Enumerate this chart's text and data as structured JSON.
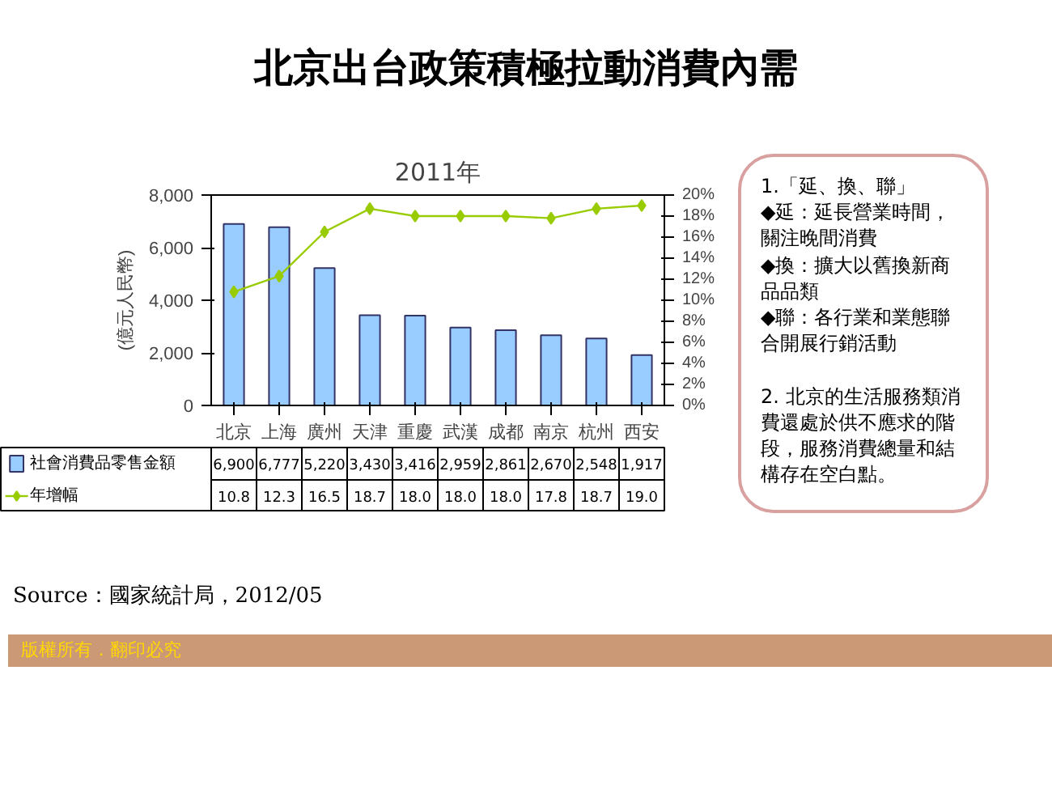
{
  "chart_data": {
    "type": "bar",
    "title": "北京出台政策積極拉動消費內需",
    "subtitle": "2011年",
    "ylabel": "(億元人民幣)",
    "categories": [
      "北京",
      "上海",
      "廣州",
      "天津",
      "重慶",
      "武漢",
      "成都",
      "南京",
      "杭州",
      "西安"
    ],
    "series": [
      {
        "name": "社會消費品零售金額",
        "color": "#99ccff",
        "values": [
          6900,
          6777,
          5220,
          3430,
          3416,
          2959,
          2861,
          2670,
          2548,
          1917
        ],
        "value_labels": [
          "6,900",
          "6,777",
          "5,220",
          "3,430",
          "3,416",
          "2,959",
          "2,861",
          "2,670",
          "2,548",
          "1,917"
        ]
      },
      {
        "name": "年增幅",
        "type": "line",
        "axis": "y2",
        "color": "#99cc00",
        "values": [
          10.8,
          12.3,
          16.5,
          18.7,
          18.0,
          18.0,
          18.0,
          17.8,
          18.7,
          19.0
        ],
        "value_labels": [
          "10.8",
          "12.3",
          "16.5",
          "18.7",
          "18.0",
          "18.0",
          "18.0",
          "17.8",
          "18.7",
          "19.0"
        ]
      }
    ],
    "ylim": [
      0,
      8000
    ],
    "yticks": [
      {
        "value": 0,
        "label": "0"
      },
      {
        "value": 2000,
        "label": "2,000"
      },
      {
        "value": 4000,
        "label": "4,000"
      },
      {
        "value": 6000,
        "label": "6,000"
      },
      {
        "value": 8000,
        "label": "8,000"
      }
    ],
    "y2lim": [
      0,
      20
    ],
    "y2ticks": [
      {
        "value": 0,
        "label": "0%"
      },
      {
        "value": 2,
        "label": "2%"
      },
      {
        "value": 4,
        "label": "4%"
      },
      {
        "value": 6,
        "label": "6%"
      },
      {
        "value": 8,
        "label": "8%"
      },
      {
        "value": 10,
        "label": "10%"
      },
      {
        "value": 12,
        "label": "12%"
      },
      {
        "value": 14,
        "label": "14%"
      },
      {
        "value": 16,
        "label": "16%"
      },
      {
        "value": 18,
        "label": "18%"
      },
      {
        "value": 20,
        "label": "20%"
      }
    ],
    "marker": "diamond",
    "line_style": "solid",
    "grid": false,
    "legend": "bottom",
    "annotations": [
      "1.「延、換、聯」\n◆延：延長營業時間，關注晚間消費\n◆換：擴大以舊換新商品品類\n◆聯：各行業和業態聯合開展行銷活動\n\n2. 北京的生活服務類消費還處於供不應求的階段，服務消費總量和結構存在空白點。",
      "Source：國家統計局，2012/05",
      "版權所有．翻印必究"
    ]
  }
}
